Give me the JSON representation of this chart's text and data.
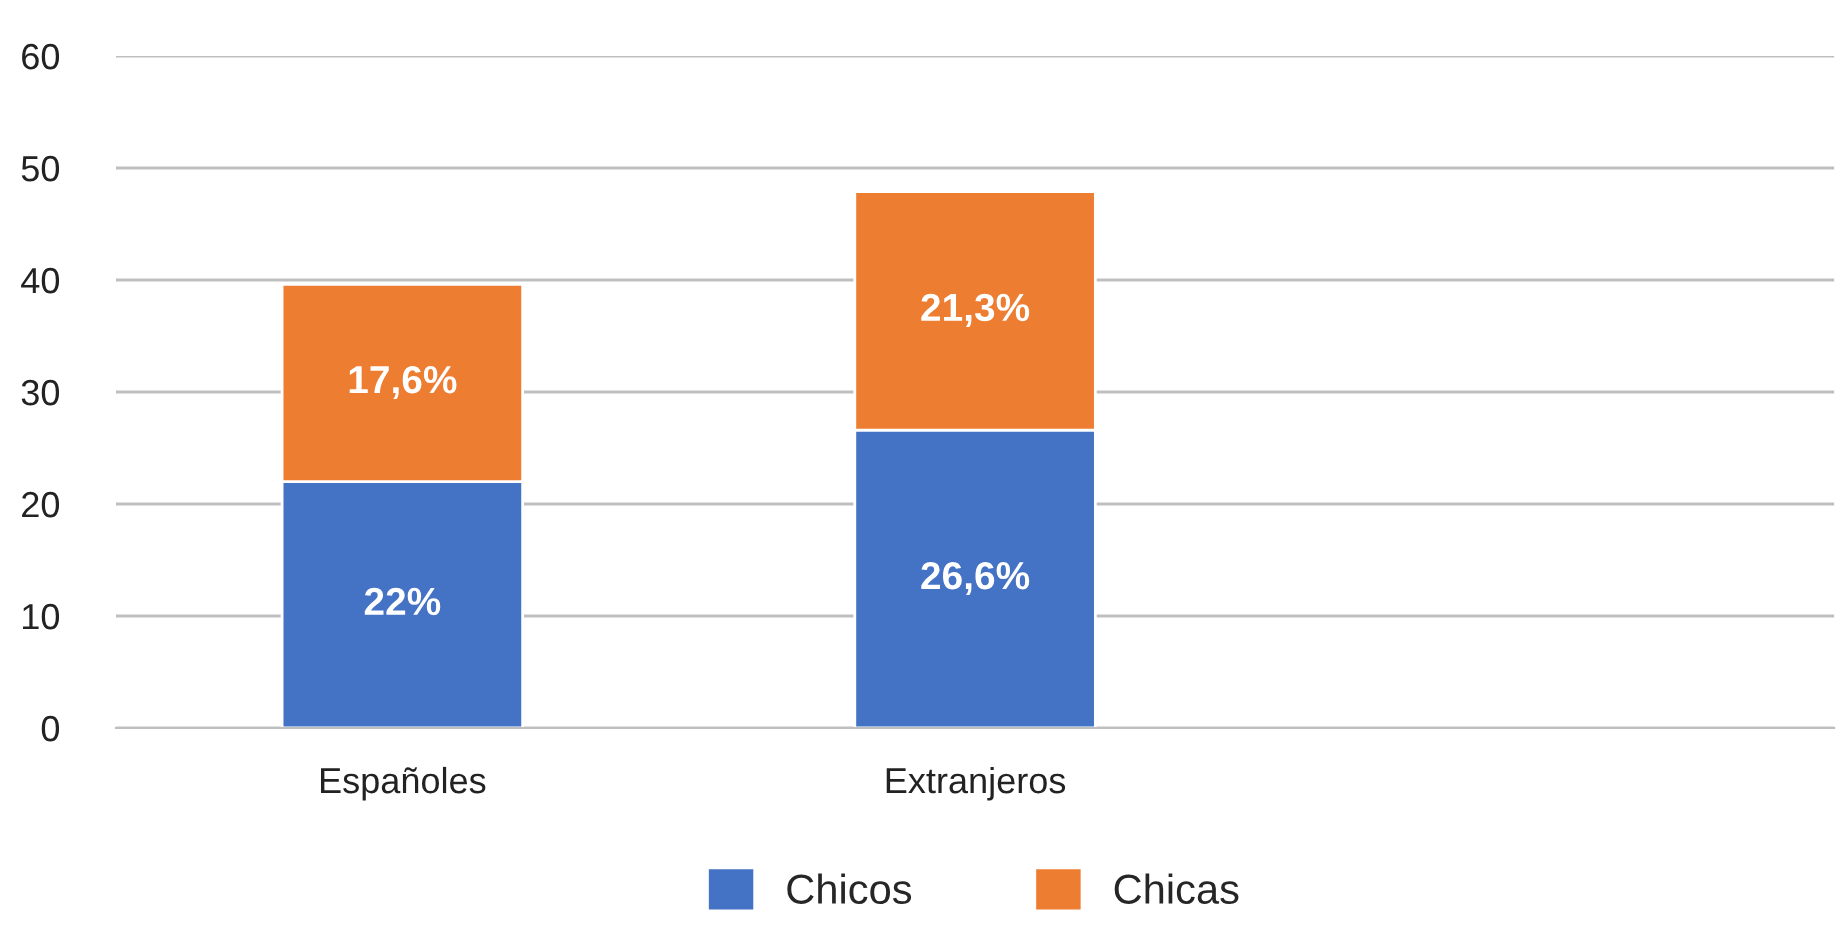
{
  "chart_data": {
    "type": "bar",
    "stacked": true,
    "categories": [
      "Españoles",
      "Extranjeros",
      null
    ],
    "series": [
      {
        "name": "Chicos",
        "color": "#4472c4",
        "values": [
          22,
          26.6,
          null
        ],
        "value_labels": [
          "22%",
          "26,6%",
          null
        ]
      },
      {
        "name": "Chicas",
        "color": "#ed7d31",
        "values": [
          17.6,
          21.3,
          null
        ],
        "value_labels": [
          "17,6%",
          "21,3%",
          null
        ]
      }
    ],
    "ylim": [
      0,
      60
    ],
    "yticks": [
      0,
      10,
      20,
      30,
      40,
      50,
      60
    ],
    "grid": "y",
    "legend": "bottom"
  }
}
